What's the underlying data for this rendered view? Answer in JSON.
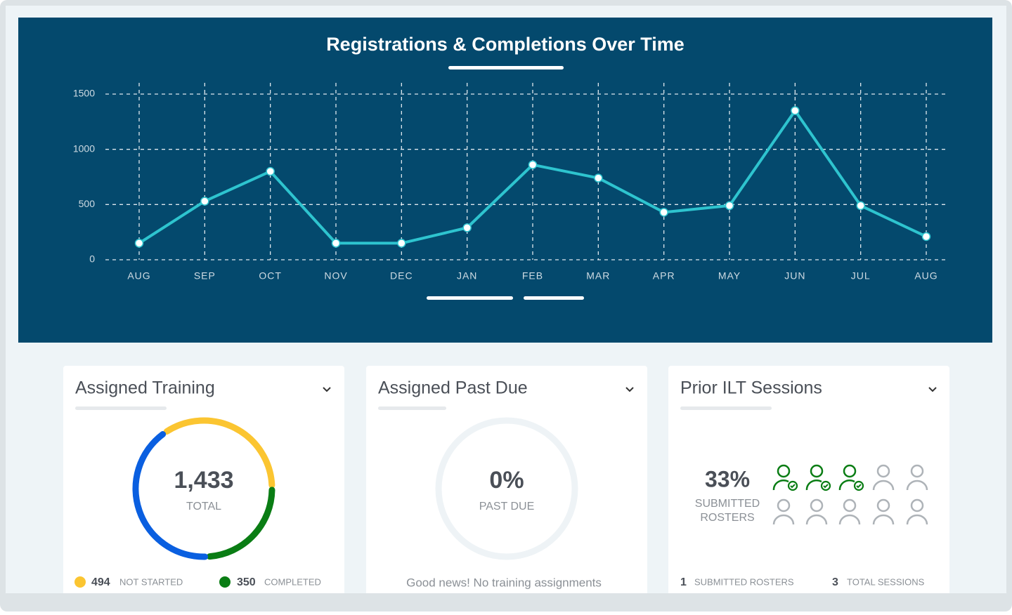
{
  "chart_data": {
    "type": "line",
    "title": "Registrations & Completions Over Time",
    "categories": [
      "AUG",
      "SEP",
      "OCT",
      "NOV",
      "DEC",
      "JAN",
      "FEB",
      "MAR",
      "APR",
      "MAY",
      "JUN",
      "JUL",
      "AUG"
    ],
    "series": [
      {
        "color": "#2ec4cf",
        "values": [
          150,
          530,
          800,
          150,
          150,
          290,
          860,
          740,
          430,
          490,
          1350,
          490,
          210
        ]
      }
    ],
    "ylim": [
      0,
      1500
    ],
    "yticks": [
      0,
      500,
      1000,
      1500
    ],
    "grid": true
  },
  "cards": {
    "assigned_training": {
      "title": "Assigned Training",
      "total": {
        "value": 1433,
        "label": "1,433"
      },
      "total_caption": "TOTAL",
      "not_started": {
        "value": 494,
        "label": "NOT STARTED",
        "color": "#fbc531"
      },
      "completed": {
        "value": 350,
        "label": "COMPLETED",
        "color": "#0a7d14"
      },
      "other_color": "#0a5fe0"
    },
    "assigned_past_due": {
      "title": "Assigned Past Due",
      "percent": "0%",
      "caption": "PAST DUE",
      "message": "Good news! No training assignments"
    },
    "prior_ilt_sessions": {
      "title": "Prior ILT Sessions",
      "percent": "33%",
      "caption_1": "SUBMITTED",
      "caption_2": "ROSTERS",
      "submitted": "1",
      "submitted_label": "SUBMITTED ROSTERS",
      "total": "3",
      "total_label": "TOTAL SESSIONS"
    }
  }
}
